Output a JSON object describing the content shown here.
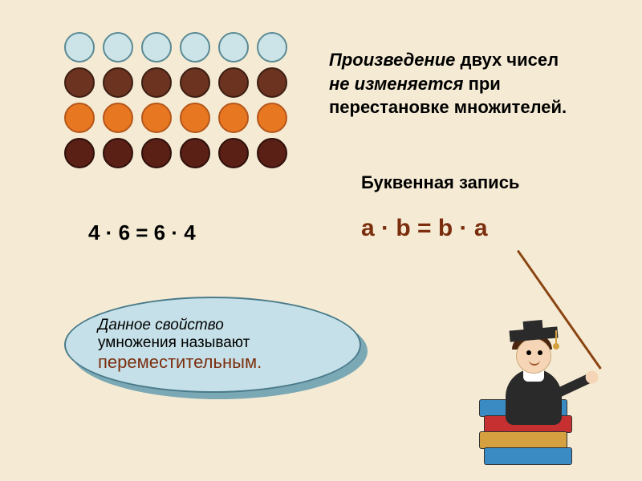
{
  "circle_grid": {
    "rows": 4,
    "cols": 6,
    "row_colors": [
      "#cce4e8",
      "#6b3320",
      "#e87722",
      "#5a1f15"
    ],
    "row_border_colors": [
      "#5a8a95",
      "#3d1e12",
      "#b5561a",
      "#2e100b"
    ]
  },
  "rule_text": {
    "line1_italic": "Произведение",
    "line1_rest": " двух чисел",
    "line2_italic": "не изменяется",
    "line2_rest": " при",
    "line3": "перестановке множителей."
  },
  "letter_label": "Буквенная запись",
  "equation_left": "4 · 6  =   6 · 4",
  "equation_right": "a · b = b · a",
  "bubble": {
    "text1_italic": "Данное свойство",
    "text2": "умножения называют",
    "text3": "переместительным."
  },
  "books": {
    "colors": [
      "#3a8bc4",
      "#c73030",
      "#d4a040",
      "#3a8bc4"
    ]
  },
  "colors": {
    "background": "#f5ebd4",
    "bubble_fill": "#c5e0e8",
    "bubble_shadow": "#7ba8b5",
    "equation_accent": "#7b2e0e"
  }
}
